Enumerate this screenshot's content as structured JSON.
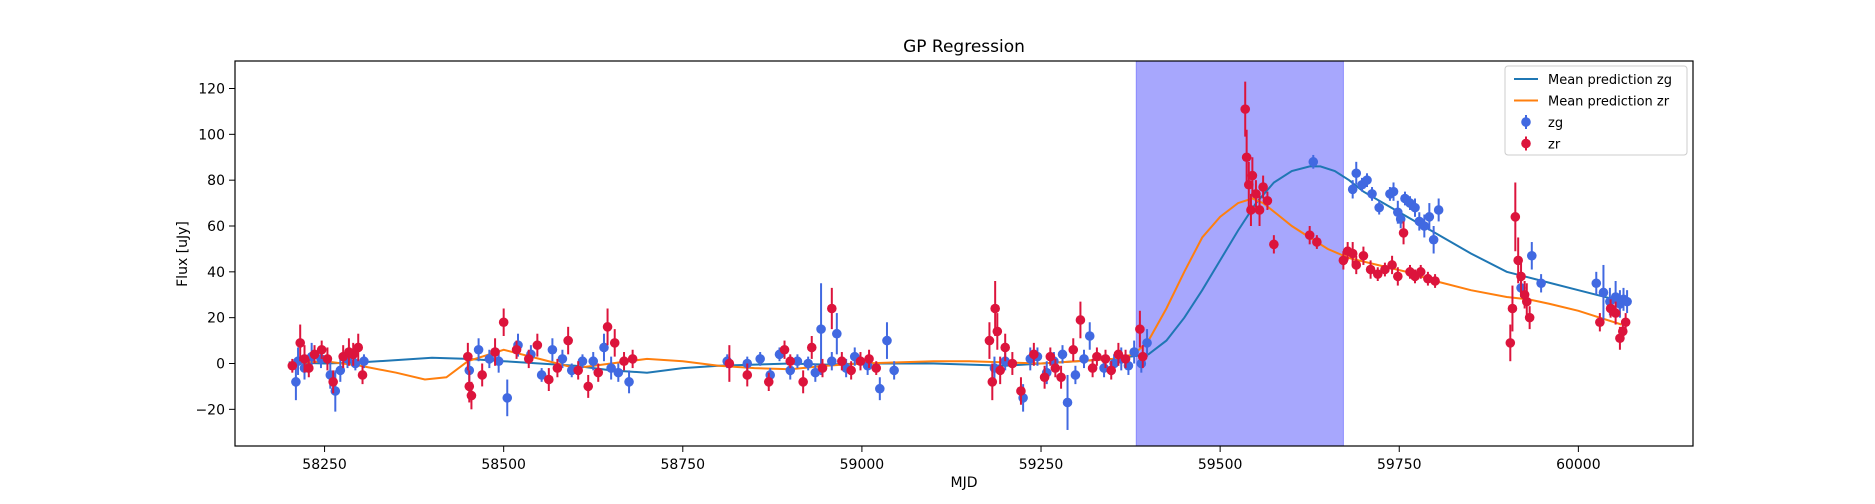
{
  "chart_data": {
    "type": "scatter",
    "title": "GP Regression",
    "xlabel": "MJD",
    "ylabel": "Flux [uJy]",
    "xlim": [
      58125,
      60160
    ],
    "ylim": [
      -36,
      132
    ],
    "xticks": [
      58250,
      58500,
      58750,
      59000,
      59250,
      59500,
      59750,
      60000
    ],
    "yticks": [
      -20,
      0,
      20,
      40,
      60,
      80,
      100,
      120
    ],
    "grid": false,
    "legend_position": "top-right",
    "shaded_region": {
      "x0": 59383,
      "x1": 59672,
      "color": "#a7a7fd"
    },
    "series": [
      {
        "name": "Mean prediction zg",
        "kind": "line",
        "color": "#1f77b4",
        "x": [
          58200,
          58250,
          58300,
          58350,
          58400,
          58450,
          58500,
          58550,
          58600,
          58650,
          58700,
          58750,
          58800,
          58850,
          58900,
          58950,
          59000,
          59050,
          59100,
          59150,
          59200,
          59250,
          59300,
          59350,
          59400,
          59425,
          59450,
          59475,
          59500,
          59525,
          59550,
          59575,
          59600,
          59625,
          59640,
          59660,
          59680,
          59700,
          59750,
          59800,
          59850,
          59900,
          59950,
          60000,
          60050
        ],
        "y": [
          0.5,
          0,
          0.5,
          1.5,
          2.5,
          2,
          1,
          0,
          -1,
          -3,
          -4,
          -2,
          -1,
          -0.5,
          0,
          -0.5,
          0,
          0,
          0,
          -0.5,
          -1,
          0,
          1,
          2,
          4,
          10,
          20,
          32,
          45,
          58,
          70,
          79,
          84,
          86,
          86,
          84,
          80,
          75,
          66,
          57,
          48,
          40,
          36,
          32,
          28
        ]
      },
      {
        "name": "Mean prediction zr",
        "kind": "line",
        "color": "#ff7f0e",
        "x": [
          58200,
          58250,
          58300,
          58350,
          58390,
          58420,
          58450,
          58500,
          58550,
          58600,
          58650,
          58700,
          58750,
          58800,
          58850,
          58900,
          58950,
          59000,
          59050,
          59100,
          59150,
          59200,
          59250,
          59300,
          59350,
          59380,
          59400,
          59425,
          59450,
          59475,
          59500,
          59525,
          59545,
          59560,
          59580,
          59600,
          59625,
          59650,
          59680,
          59720,
          59760,
          59800,
          59850,
          59900,
          59930,
          59960,
          60000,
          60030,
          60060
        ],
        "y": [
          0,
          1,
          -1,
          -4,
          -7,
          -6,
          1,
          6,
          2,
          -2,
          0,
          2,
          1,
          -1,
          -2,
          -2.5,
          -1,
          0,
          0.5,
          1,
          1,
          0.5,
          0,
          1,
          2,
          4,
          10,
          24,
          40,
          55,
          64,
          70,
          72,
          70,
          65,
          60,
          55,
          50,
          46,
          43,
          40,
          36,
          32,
          29,
          28,
          26,
          23,
          20,
          17
        ]
      },
      {
        "name": "zg",
        "kind": "errorbar",
        "color": "#4169e1",
        "points": [
          [
            58210,
            -8,
            8
          ],
          [
            58213,
            1,
            6
          ],
          [
            58222,
            -2,
            5
          ],
          [
            58232,
            3,
            6
          ],
          [
            58245,
            2,
            4
          ],
          [
            58258,
            -5,
            6
          ],
          [
            58265,
            -12,
            9
          ],
          [
            58272,
            -3,
            5
          ],
          [
            58282,
            2,
            4
          ],
          [
            58293,
            0,
            3
          ],
          [
            58305,
            1,
            3
          ],
          [
            58452,
            -3,
            5
          ],
          [
            58465,
            6,
            5
          ],
          [
            58480,
            2,
            4
          ],
          [
            58493,
            1,
            5
          ],
          [
            58505,
            -15,
            8
          ],
          [
            58520,
            8,
            5
          ],
          [
            58538,
            4,
            4
          ],
          [
            58553,
            -5,
            3
          ],
          [
            58568,
            6,
            5
          ],
          [
            58582,
            2,
            4
          ],
          [
            58595,
            -3,
            3
          ],
          [
            58610,
            1,
            3
          ],
          [
            58625,
            1,
            4
          ],
          [
            58640,
            7,
            6
          ],
          [
            58650,
            -2,
            5
          ],
          [
            58660,
            -4,
            4
          ],
          [
            58675,
            -8,
            5
          ],
          [
            58812,
            1,
            3
          ],
          [
            58840,
            0,
            3
          ],
          [
            58858,
            2,
            3
          ],
          [
            58872,
            -5,
            3
          ],
          [
            58885,
            4,
            3
          ],
          [
            58900,
            -3,
            4
          ],
          [
            58910,
            1,
            3
          ],
          [
            58925,
            0,
            3
          ],
          [
            58935,
            -4,
            4
          ],
          [
            58943,
            15,
            20
          ],
          [
            58958,
            1,
            4
          ],
          [
            58965,
            13,
            9
          ],
          [
            58978,
            -2,
            4
          ],
          [
            58990,
            3,
            4
          ],
          [
            59008,
            -1,
            4
          ],
          [
            59025,
            -11,
            5
          ],
          [
            59035,
            10,
            8
          ],
          [
            59045,
            -3,
            4
          ],
          [
            59185,
            -2,
            5
          ],
          [
            59200,
            1,
            4
          ],
          [
            59225,
            -15,
            6
          ],
          [
            59235,
            2,
            5
          ],
          [
            59245,
            3,
            4
          ],
          [
            59258,
            -4,
            5
          ],
          [
            59268,
            1,
            4
          ],
          [
            59280,
            4,
            4
          ],
          [
            59287,
            -17,
            12
          ],
          [
            59298,
            -5,
            4
          ],
          [
            59310,
            2,
            4
          ],
          [
            59318,
            12,
            6
          ],
          [
            59338,
            -2,
            4
          ],
          [
            59352,
            0,
            4
          ],
          [
            59362,
            2,
            5
          ],
          [
            59372,
            -1,
            4
          ],
          [
            59380,
            5,
            5
          ],
          [
            59390,
            0,
            4
          ],
          [
            59398,
            9,
            6
          ],
          [
            59630,
            88,
            3
          ],
          [
            59685,
            76,
            4
          ],
          [
            59690,
            83,
            5
          ],
          [
            59698,
            78,
            3
          ],
          [
            59705,
            80,
            3
          ],
          [
            59712,
            74,
            3
          ],
          [
            59722,
            68,
            3
          ],
          [
            59737,
            74,
            3
          ],
          [
            59742,
            75,
            4
          ],
          [
            59748,
            66,
            5
          ],
          [
            59752,
            63,
            4
          ],
          [
            59758,
            72,
            3
          ],
          [
            59765,
            70,
            3
          ],
          [
            59772,
            68,
            4
          ],
          [
            59778,
            62,
            4
          ],
          [
            59785,
            60,
            5
          ],
          [
            59792,
            64,
            6
          ],
          [
            59798,
            54,
            6
          ],
          [
            59805,
            67,
            5
          ],
          [
            59920,
            33,
            4
          ],
          [
            59935,
            47,
            6
          ],
          [
            59948,
            35,
            4
          ],
          [
            60025,
            35,
            5
          ],
          [
            60035,
            31,
            12
          ],
          [
            60044,
            27,
            6
          ],
          [
            60052,
            29,
            7
          ],
          [
            60058,
            26,
            6
          ],
          [
            60063,
            28,
            5
          ],
          [
            60068,
            27,
            5
          ]
        ]
      },
      {
        "name": "zr",
        "kind": "errorbar",
        "color": "#dc143c",
        "points": [
          [
            58205,
            -1,
            3
          ],
          [
            58216,
            9,
            8
          ],
          [
            58222,
            2,
            6
          ],
          [
            58228,
            -2,
            4
          ],
          [
            58236,
            4,
            4
          ],
          [
            58246,
            6,
            4
          ],
          [
            58254,
            2,
            5
          ],
          [
            58262,
            -8,
            5
          ],
          [
            58276,
            3,
            5
          ],
          [
            58284,
            5,
            6
          ],
          [
            58290,
            4,
            5
          ],
          [
            58297,
            7,
            6
          ],
          [
            58303,
            -5,
            4
          ],
          [
            58450,
            3,
            6
          ],
          [
            58452,
            -10,
            7
          ],
          [
            58455,
            -14,
            6
          ],
          [
            58470,
            -5,
            5
          ],
          [
            58488,
            5,
            6
          ],
          [
            58500,
            18,
            6
          ],
          [
            58518,
            6,
            4
          ],
          [
            58535,
            2,
            4
          ],
          [
            58547,
            8,
            5
          ],
          [
            58563,
            -7,
            5
          ],
          [
            58575,
            -2,
            4
          ],
          [
            58590,
            10,
            6
          ],
          [
            58604,
            -3,
            4
          ],
          [
            58618,
            -10,
            5
          ],
          [
            58632,
            -4,
            4
          ],
          [
            58645,
            16,
            8
          ],
          [
            58655,
            9,
            6
          ],
          [
            58668,
            1,
            4
          ],
          [
            58680,
            2,
            4
          ],
          [
            58815,
            0,
            8
          ],
          [
            58840,
            -5,
            5
          ],
          [
            58870,
            -8,
            4
          ],
          [
            58892,
            6,
            4
          ],
          [
            58900,
            1,
            3
          ],
          [
            58918,
            -8,
            5
          ],
          [
            58930,
            7,
            5
          ],
          [
            58945,
            -2,
            4
          ],
          [
            58958,
            24,
            9
          ],
          [
            58972,
            1,
            4
          ],
          [
            58985,
            -3,
            4
          ],
          [
            58998,
            1,
            4
          ],
          [
            59010,
            2,
            4
          ],
          [
            59020,
            -2,
            3
          ],
          [
            59178,
            10,
            8
          ],
          [
            59182,
            -8,
            8
          ],
          [
            59186,
            24,
            12
          ],
          [
            59189,
            14,
            8
          ],
          [
            59193,
            -3,
            6
          ],
          [
            59200,
            7,
            6
          ],
          [
            59210,
            0,
            5
          ],
          [
            59222,
            -12,
            6
          ],
          [
            59240,
            4,
            5
          ],
          [
            59255,
            -6,
            5
          ],
          [
            59263,
            3,
            4
          ],
          [
            59270,
            -2,
            4
          ],
          [
            59278,
            -6,
            5
          ],
          [
            59295,
            6,
            5
          ],
          [
            59305,
            19,
            8
          ],
          [
            59322,
            -2,
            4
          ],
          [
            59328,
            3,
            4
          ],
          [
            59340,
            2,
            4
          ],
          [
            59348,
            -3,
            4
          ],
          [
            59358,
            4,
            5
          ],
          [
            59368,
            2,
            4
          ],
          [
            59388,
            15,
            8
          ],
          [
            59392,
            3,
            5
          ],
          [
            59535,
            111,
            12
          ],
          [
            59537,
            90,
            12
          ],
          [
            59540,
            78,
            10
          ],
          [
            59543,
            67,
            7
          ],
          [
            59545,
            82,
            8
          ],
          [
            59550,
            74,
            6
          ],
          [
            59555,
            67,
            7
          ],
          [
            59560,
            77,
            5
          ],
          [
            59566,
            71,
            4
          ],
          [
            59575,
            52,
            4
          ],
          [
            59625,
            56,
            4
          ],
          [
            59635,
            53,
            3
          ],
          [
            59672,
            45,
            4
          ],
          [
            59678,
            49,
            4
          ],
          [
            59685,
            48,
            5
          ],
          [
            59690,
            43,
            4
          ],
          [
            59700,
            47,
            4
          ],
          [
            59710,
            41,
            4
          ],
          [
            59720,
            39,
            3
          ],
          [
            59730,
            41,
            3
          ],
          [
            59740,
            43,
            4
          ],
          [
            59748,
            38,
            4
          ],
          [
            59756,
            57,
            5
          ],
          [
            59765,
            40,
            3
          ],
          [
            59772,
            38,
            3
          ],
          [
            59780,
            40,
            3
          ],
          [
            59790,
            37,
            3
          ],
          [
            59800,
            36,
            3
          ],
          [
            59905,
            9,
            8
          ],
          [
            59908,
            24,
            10
          ],
          [
            59912,
            64,
            15
          ],
          [
            59916,
            45,
            10
          ],
          [
            59920,
            38,
            8
          ],
          [
            59925,
            30,
            6
          ],
          [
            59928,
            27,
            8
          ],
          [
            59932,
            20,
            5
          ],
          [
            60030,
            18,
            4
          ],
          [
            60045,
            24,
            4
          ],
          [
            60052,
            22,
            5
          ],
          [
            60058,
            11,
            5
          ],
          [
            60062,
            14,
            4
          ],
          [
            60066,
            18,
            4
          ]
        ]
      }
    ]
  }
}
